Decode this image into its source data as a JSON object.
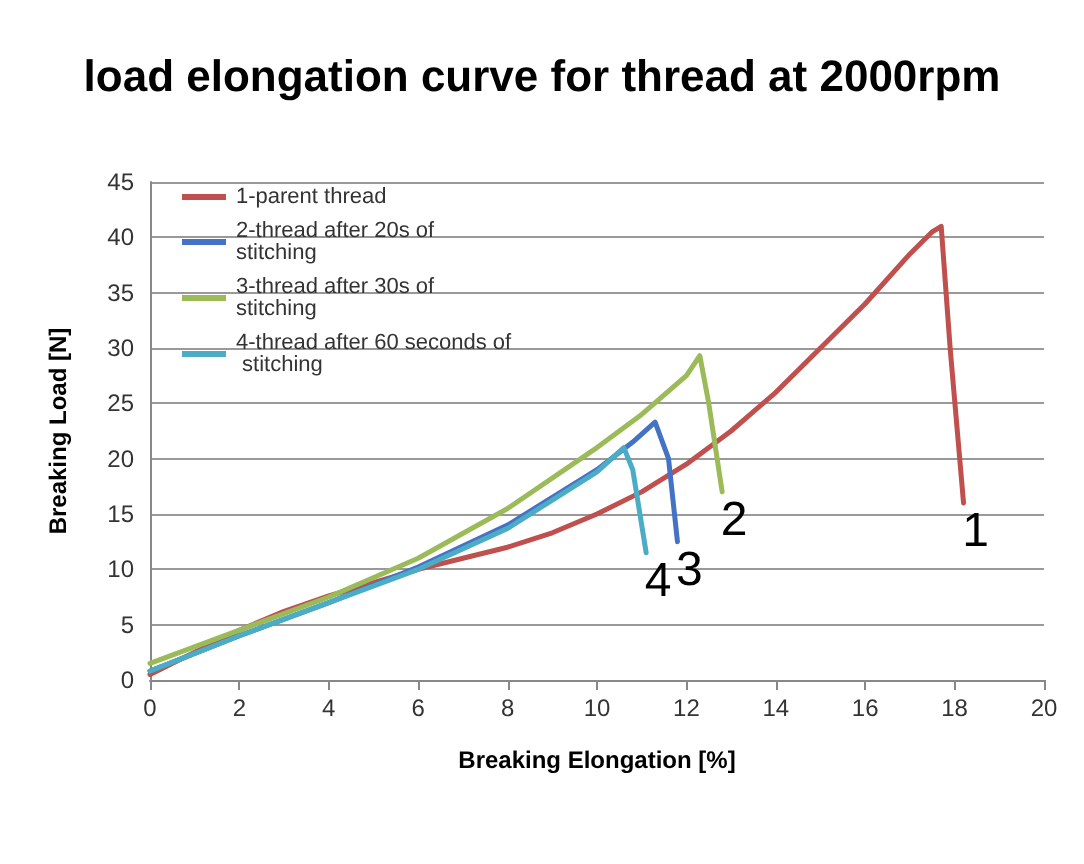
{
  "chart_data": {
    "type": "line",
    "title": "load elongation curve for thread at 2000rpm",
    "xlabel": "Breaking Elongation [%]",
    "ylabel": "Breaking Load [N]",
    "xlim": [
      0,
      20
    ],
    "xticks": [
      0,
      2,
      4,
      6,
      8,
      10,
      12,
      14,
      16,
      18,
      20
    ],
    "ylim": [
      0,
      45
    ],
    "yticks": [
      0,
      5,
      10,
      15,
      20,
      25,
      30,
      35,
      40,
      45
    ],
    "grid": "y",
    "legend": "top left",
    "marker": "none",
    "line_style": "solid",
    "series": [
      {
        "name": "1-parent thread",
        "color": "#c0504d",
        "x": [
          0,
          1,
          2,
          3,
          4,
          5,
          6,
          7,
          8,
          9,
          10,
          11,
          12,
          13,
          14,
          15,
          16,
          17,
          17.5,
          17.7,
          17.9,
          18.2
        ],
        "values": [
          0.5,
          2.5,
          4.5,
          6.2,
          7.6,
          8.8,
          10,
          11,
          12,
          13.3,
          15,
          17,
          19.5,
          22.5,
          26,
          30,
          34,
          38.5,
          40.5,
          41,
          30,
          16
        ]
      },
      {
        "name": "2-thread after 20s of stitching",
        "color": "#4472c4",
        "x": [
          0,
          2,
          4,
          6,
          8,
          10,
          10.8,
          11.3,
          11.6,
          11.8
        ],
        "values": [
          0.8,
          4,
          7,
          10.2,
          14,
          19,
          21.5,
          23.3,
          20,
          12.5
        ]
      },
      {
        "name": "3-thread after 30s of stitching",
        "color": "#9bbb59",
        "x": [
          0,
          2,
          4,
          6,
          8,
          10,
          11,
          12,
          12.3,
          12.5,
          12.8
        ],
        "values": [
          1.5,
          4.5,
          7.5,
          11,
          15.5,
          21,
          24,
          27.5,
          29.3,
          25,
          17
        ]
      },
      {
        "name": "4-thread after 60 seconds of stitching",
        "color": "#4bacc6",
        "x": [
          0,
          2,
          4,
          6,
          8,
          10,
          10.6,
          10.8,
          11.1
        ],
        "values": [
          0.8,
          4,
          7,
          10,
          13.7,
          18.8,
          21,
          19,
          11.5
        ]
      }
    ],
    "annotations": [
      {
        "text": "1",
        "x": 18.2,
        "y": 16
      },
      {
        "text": "2",
        "x": 12.8,
        "y": 17
      },
      {
        "text": "3",
        "x": 11.8,
        "y": 12.5
      },
      {
        "text": "4",
        "x": 11.1,
        "y": 11.5
      }
    ]
  }
}
